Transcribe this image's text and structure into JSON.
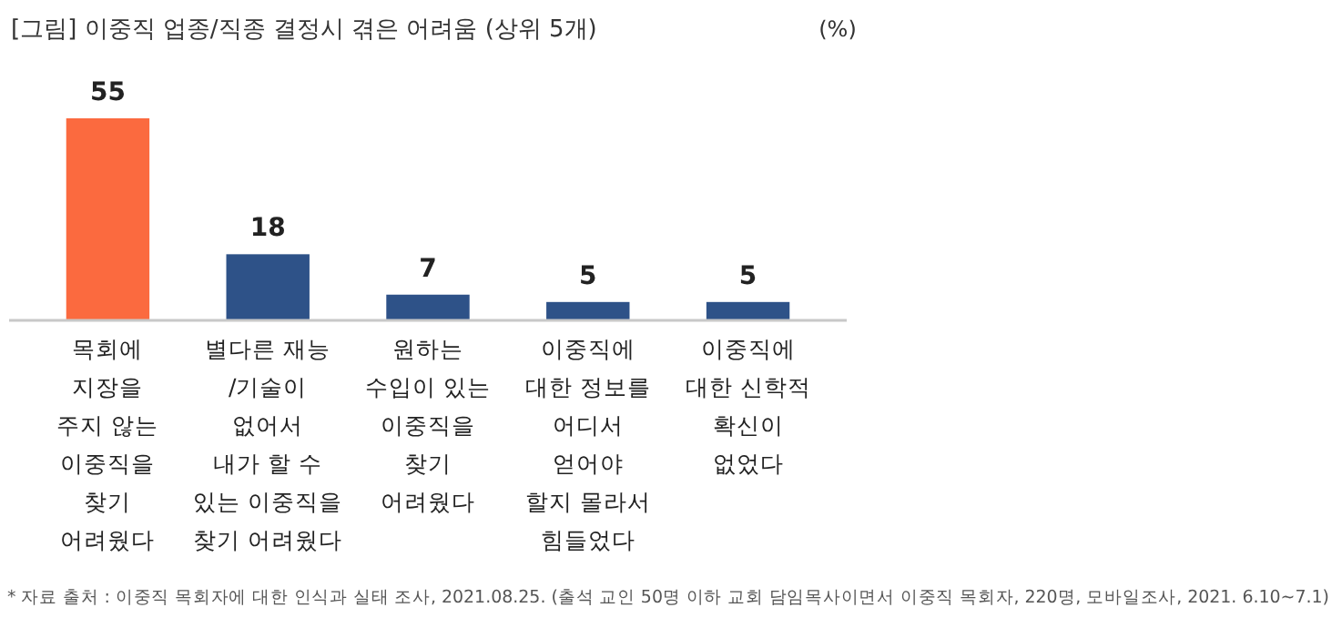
{
  "chart_data": {
    "type": "bar",
    "title": "[그림] 이중직 업종/직종 결정시 겪은 어려움 (상위 5개)",
    "ylabel": "(%)",
    "categories": [
      "목회에\n지장을\n주지 않는\n이중직을\n찾기\n어려웠다",
      "별다른 재능\n/기술이\n없어서\n내가 할 수\n있는 이중직을\n찾기 어려웠다",
      "원하는\n수입이 있는\n이중직을\n찾기\n어려웠다",
      "이중직에\n대한 정보를\n어디서\n얻어야\n할지 몰라서\n힘들었다",
      "이중직에\n대한 신학적\n확신이\n없었다"
    ],
    "values": [
      55,
      18,
      7,
      5,
      5
    ],
    "colors": [
      "#fb6a3f",
      "#2e5288",
      "#2e5288",
      "#2e5288",
      "#2e5288"
    ],
    "data_labels": true,
    "annotations": [
      "* 자료 출처 : 이중직 목회자에 대한 인식과 실태 조사, 2021.08.25. (출석 교인 50명 이하 교회 담임목사이면서 이중직 목회자, 220명, 모바일조사, 2021. 6.10~7.1)"
    ]
  }
}
